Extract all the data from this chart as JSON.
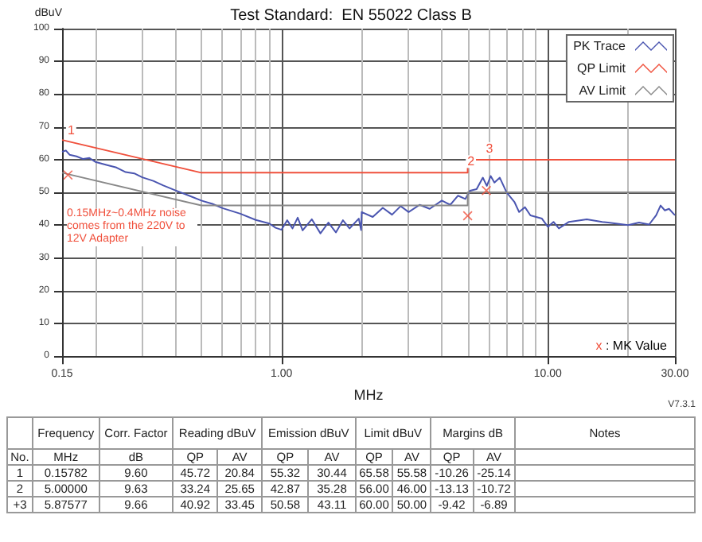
{
  "chart_data": {
    "type": "line",
    "title": "Test Standard:  EN 55022 Class B",
    "xlabel": "MHz",
    "ylabel": "dBuV",
    "log": "x",
    "grid": true,
    "legend": "top right",
    "xlim": [
      0.15,
      30
    ],
    "xticks": [
      {
        "value": 0.15,
        "label": "0.15"
      },
      {
        "value": 1,
        "label": "1.00"
      },
      {
        "value": 10,
        "label": "10.00"
      },
      {
        "value": 30,
        "label": "30.00"
      }
    ],
    "ylim": [
      0,
      100
    ],
    "yticks": [
      0,
      10,
      20,
      30,
      40,
      50,
      60,
      70,
      80,
      90,
      100
    ],
    "series": [
      {
        "name": "PK Trace",
        "color": "#4a55b0",
        "x": [
          0.15,
          0.155,
          0.16,
          0.17,
          0.18,
          0.19,
          0.2,
          0.22,
          0.24,
          0.26,
          0.28,
          0.3,
          0.33,
          0.36,
          0.4,
          0.45,
          0.5,
          0.55,
          0.6,
          0.7,
          0.8,
          0.9,
          0.95,
          1.0,
          1.05,
          1.1,
          1.15,
          1.2,
          1.3,
          1.4,
          1.5,
          1.6,
          1.7,
          1.8,
          1.95,
          1.99,
          2.0,
          2.2,
          2.4,
          2.6,
          2.8,
          3.0,
          3.3,
          3.6,
          4.0,
          4.3,
          4.6,
          4.9,
          5.1,
          5.4,
          5.7,
          5.9,
          6.1,
          6.3,
          6.6,
          7.0,
          7.5,
          7.8,
          8.2,
          8.6,
          9.5,
          10,
          10.5,
          11,
          12,
          14,
          16,
          18,
          20,
          22,
          24,
          25.5,
          26.5,
          27.5,
          28.5,
          30
        ],
        "values": [
          62.4,
          62.8,
          61.5,
          61.0,
          60.2,
          60.5,
          59.3,
          58.4,
          57.6,
          56.2,
          55.8,
          54.6,
          53.5,
          52.1,
          50.6,
          49.0,
          47.5,
          46.5,
          45.2,
          43.5,
          41.6,
          40.5,
          39.2,
          38.6,
          41.5,
          39.0,
          42.3,
          38.4,
          41.8,
          37.5,
          40.8,
          37.8,
          41.5,
          39.0,
          42.0,
          38.5,
          44.0,
          42.5,
          45.3,
          43.2,
          45.8,
          44.0,
          46.2,
          45.0,
          47.5,
          46.2,
          49.0,
          48.0,
          50.5,
          51.0,
          54.5,
          52.0,
          55.0,
          53.0,
          54.5,
          50.0,
          47.0,
          44.0,
          45.5,
          43.0,
          42.0,
          39.5,
          41.0,
          39.0,
          41.0,
          41.8,
          41.0,
          40.5,
          40.0,
          40.8,
          40.2,
          43.0,
          46.0,
          44.5,
          45.0,
          43.0
        ]
      },
      {
        "name": "QP Limit",
        "color": "#f0503c",
        "x": [
          0.15,
          0.5,
          5,
          5,
          30
        ],
        "values": [
          66,
          56,
          56,
          60,
          60
        ]
      },
      {
        "name": "AV Limit",
        "color": "#888888",
        "x": [
          0.15,
          0.5,
          5,
          5,
          30
        ],
        "values": [
          56,
          46,
          46,
          50,
          50
        ]
      },
      {
        "type": "scatter",
        "marker": "cross",
        "color": "#f0503c",
        "x": [
          0.15782,
          5.0,
          5.87577
        ],
        "values": [
          55.32,
          42.87,
          50.58
        ]
      }
    ],
    "annotations": [
      "0.15MHz~0.4MHz noise comes from the 220V to 12V Adapter",
      "x : MK Value",
      "V7.3.1",
      {
        "text": "1",
        "x": 0.15782,
        "y": 65.58
      },
      {
        "text": "2",
        "x": 5.0,
        "y": 56.0
      },
      {
        "text": "3",
        "x": 5.87577,
        "y": 60.0
      },
      "Frequency",
      "Corr. Factor",
      "Reading dBuV",
      "Emission dBuV",
      "Limit dBuV",
      "Margins dB",
      "Notes",
      "No. MHz dB QP AV QP AV QP AV QP AV",
      "1 0.15782 9.60 45.72 20.84 55.32 30.44 65.58 55.58 -10.26 -25.14",
      "2 5.00000 9.63 33.24 25.65 42.87 35.28 56.00 46.00 -13.13 -10.72",
      "+3 5.87577 9.66 40.92 33.45 50.58 43.11 60.00 50.00 -9.42 -6.89"
    ]
  }
}
